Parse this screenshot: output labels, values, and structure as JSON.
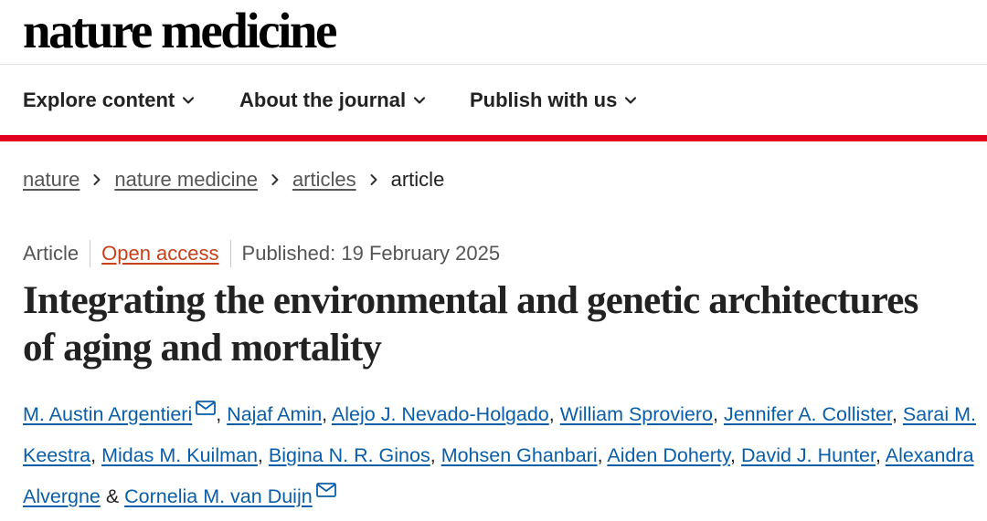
{
  "site": {
    "logo": "nature medicine"
  },
  "nav": {
    "items": [
      {
        "label": "Explore content",
        "icon": "chevron-down-icon"
      },
      {
        "label": "About the journal",
        "icon": "chevron-down-icon"
      },
      {
        "label": "Publish with us",
        "icon": "chevron-down-icon"
      }
    ]
  },
  "breadcrumb": {
    "items": [
      "nature",
      "nature medicine",
      "articles"
    ],
    "current": "article"
  },
  "article": {
    "type": "Article",
    "access": "Open access",
    "published": "Published: 19 February 2025",
    "title": "Integrating the environmental and genetic architectures of aging and mortality",
    "authors": [
      "M. Austin Argentieri",
      "Najaf Amin",
      "Alejo J. Nevado-Holgado",
      "William Sproviero",
      "Jennifer A. Collister",
      "Sarai M. Keestra",
      "Midas M. Kuilman",
      "Bigina N. R. Ginos",
      "Mohsen Ghanbari",
      "Aiden Doherty",
      "David J. Hunter",
      "Alexandra Alvergne",
      "Cornelia M. van Duijn"
    ],
    "separators": {
      "comma": ", ",
      "and": " & "
    },
    "corresponding_icon": "mail-icon"
  },
  "colors": {
    "accent_red": "#e3001b",
    "open_access": "#c4411c",
    "author_link": "#0a5ea8"
  }
}
